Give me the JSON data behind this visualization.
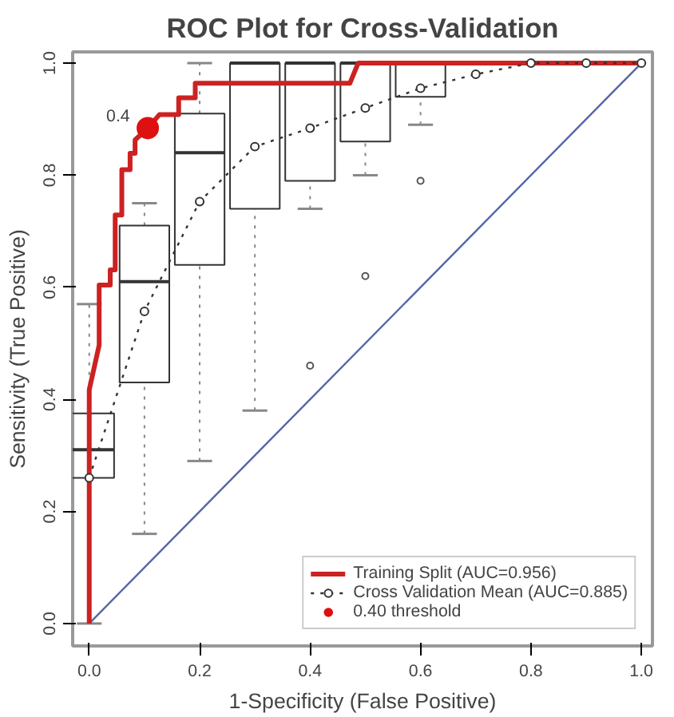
{
  "chart_data": {
    "type": "line",
    "title": "ROC Plot for Cross-Validation",
    "xlabel": "1-Specificity (False Positive)",
    "ylabel": "Sensitivity (True Positive)",
    "xlim": [
      -0.03,
      1.02
    ],
    "ylim": [
      -0.04,
      1.02
    ],
    "xticks": [
      {
        "value": 0,
        "label": "0.0"
      },
      {
        "value": 0.2,
        "label": "0.2"
      },
      {
        "value": 0.4,
        "label": "0.4"
      },
      {
        "value": 0.6,
        "label": "0.6"
      },
      {
        "value": 0.8,
        "label": "0.8"
      },
      {
        "value": 1,
        "label": "1.0"
      }
    ],
    "yticks": [
      {
        "value": 0,
        "label": "0.0"
      },
      {
        "value": 0.2,
        "label": "0.2"
      },
      {
        "value": 0.4,
        "label": "0.4"
      },
      {
        "value": 0.6,
        "label": "0.6"
      },
      {
        "value": 0.8,
        "label": "0.8"
      },
      {
        "value": 1,
        "label": "1.0"
      }
    ],
    "grid": false,
    "legend": "bottom right",
    "series": [
      {
        "type": "box",
        "color": "#333333",
        "x": [
          0,
          0.1,
          0.2,
          0.3,
          0.4,
          0.5,
          0.6
        ],
        "boxes": [
          {
            "low": 0.0,
            "q1": 0.26,
            "median": 0.31,
            "q3": 0.375,
            "high": 0.57
          },
          {
            "low": 0.16,
            "q1": 0.43,
            "median": 0.61,
            "q3": 0.71,
            "high": 0.75
          },
          {
            "low": 0.29,
            "q1": 0.64,
            "median": 0.84,
            "q3": 0.91,
            "high": 1.0
          },
          {
            "low": 0.38,
            "q1": 0.74,
            "median": 1.0,
            "q3": 1.0,
            "high": 1.0
          },
          {
            "low": 0.74,
            "q1": 0.79,
            "median": 1.0,
            "q3": 1.0,
            "high": 1.0,
            "outliers": [
              0.46
            ]
          },
          {
            "low": 0.8,
            "q1": 0.86,
            "median": 1.0,
            "q3": 1.0,
            "high": 1.0,
            "outliers": [
              0.62
            ]
          },
          {
            "low": 0.89,
            "q1": 0.94,
            "median": 1.0,
            "q3": 1.0,
            "high": 1.0,
            "outliers": [
              0.79
            ]
          }
        ]
      },
      {
        "color": "#5566aa",
        "line_style": "solid",
        "x": [
          0,
          1
        ],
        "values": [
          0,
          1
        ]
      },
      {
        "name": "Training Split (AUC=0.956)",
        "color": "#cc2222",
        "line_style": "solid",
        "x": [
          0,
          0,
          0.018,
          0.018,
          0.038,
          0.038,
          0.047,
          0.047,
          0.059,
          0.059,
          0.074,
          0.074,
          0.083,
          0.083,
          0.106,
          0.127,
          0.162,
          0.162,
          0.192,
          0.192,
          0.472,
          0.487,
          1.0
        ],
        "values": [
          0,
          0.417,
          0.497,
          0.604,
          0.604,
          0.631,
          0.631,
          0.729,
          0.729,
          0.81,
          0.81,
          0.839,
          0.839,
          0.863,
          0.884,
          0.908,
          0.908,
          0.938,
          0.938,
          0.964,
          0.964,
          1.0,
          1.0
        ]
      },
      {
        "name": "Cross Validation Mean (AUC=0.885)",
        "color": "#333333",
        "line_style": "dotted",
        "marker": "circle",
        "x": [
          0,
          0.1,
          0.2,
          0.3,
          0.4,
          0.5,
          0.6,
          0.7,
          0.8,
          0.9,
          1.0
        ],
        "values": [
          0.26,
          0.557,
          0.753,
          0.851,
          0.884,
          0.92,
          0.955,
          0.98,
          1.0,
          1.0,
          1.0
        ]
      },
      {
        "type": "scatter",
        "name": "0.40 threshold",
        "color": "#dd1111",
        "x": [
          0.106
        ],
        "values": [
          0.884
        ]
      }
    ],
    "annotations": [
      {
        "text": "0.4",
        "x": 0.106,
        "y": 0.884
      }
    ]
  }
}
